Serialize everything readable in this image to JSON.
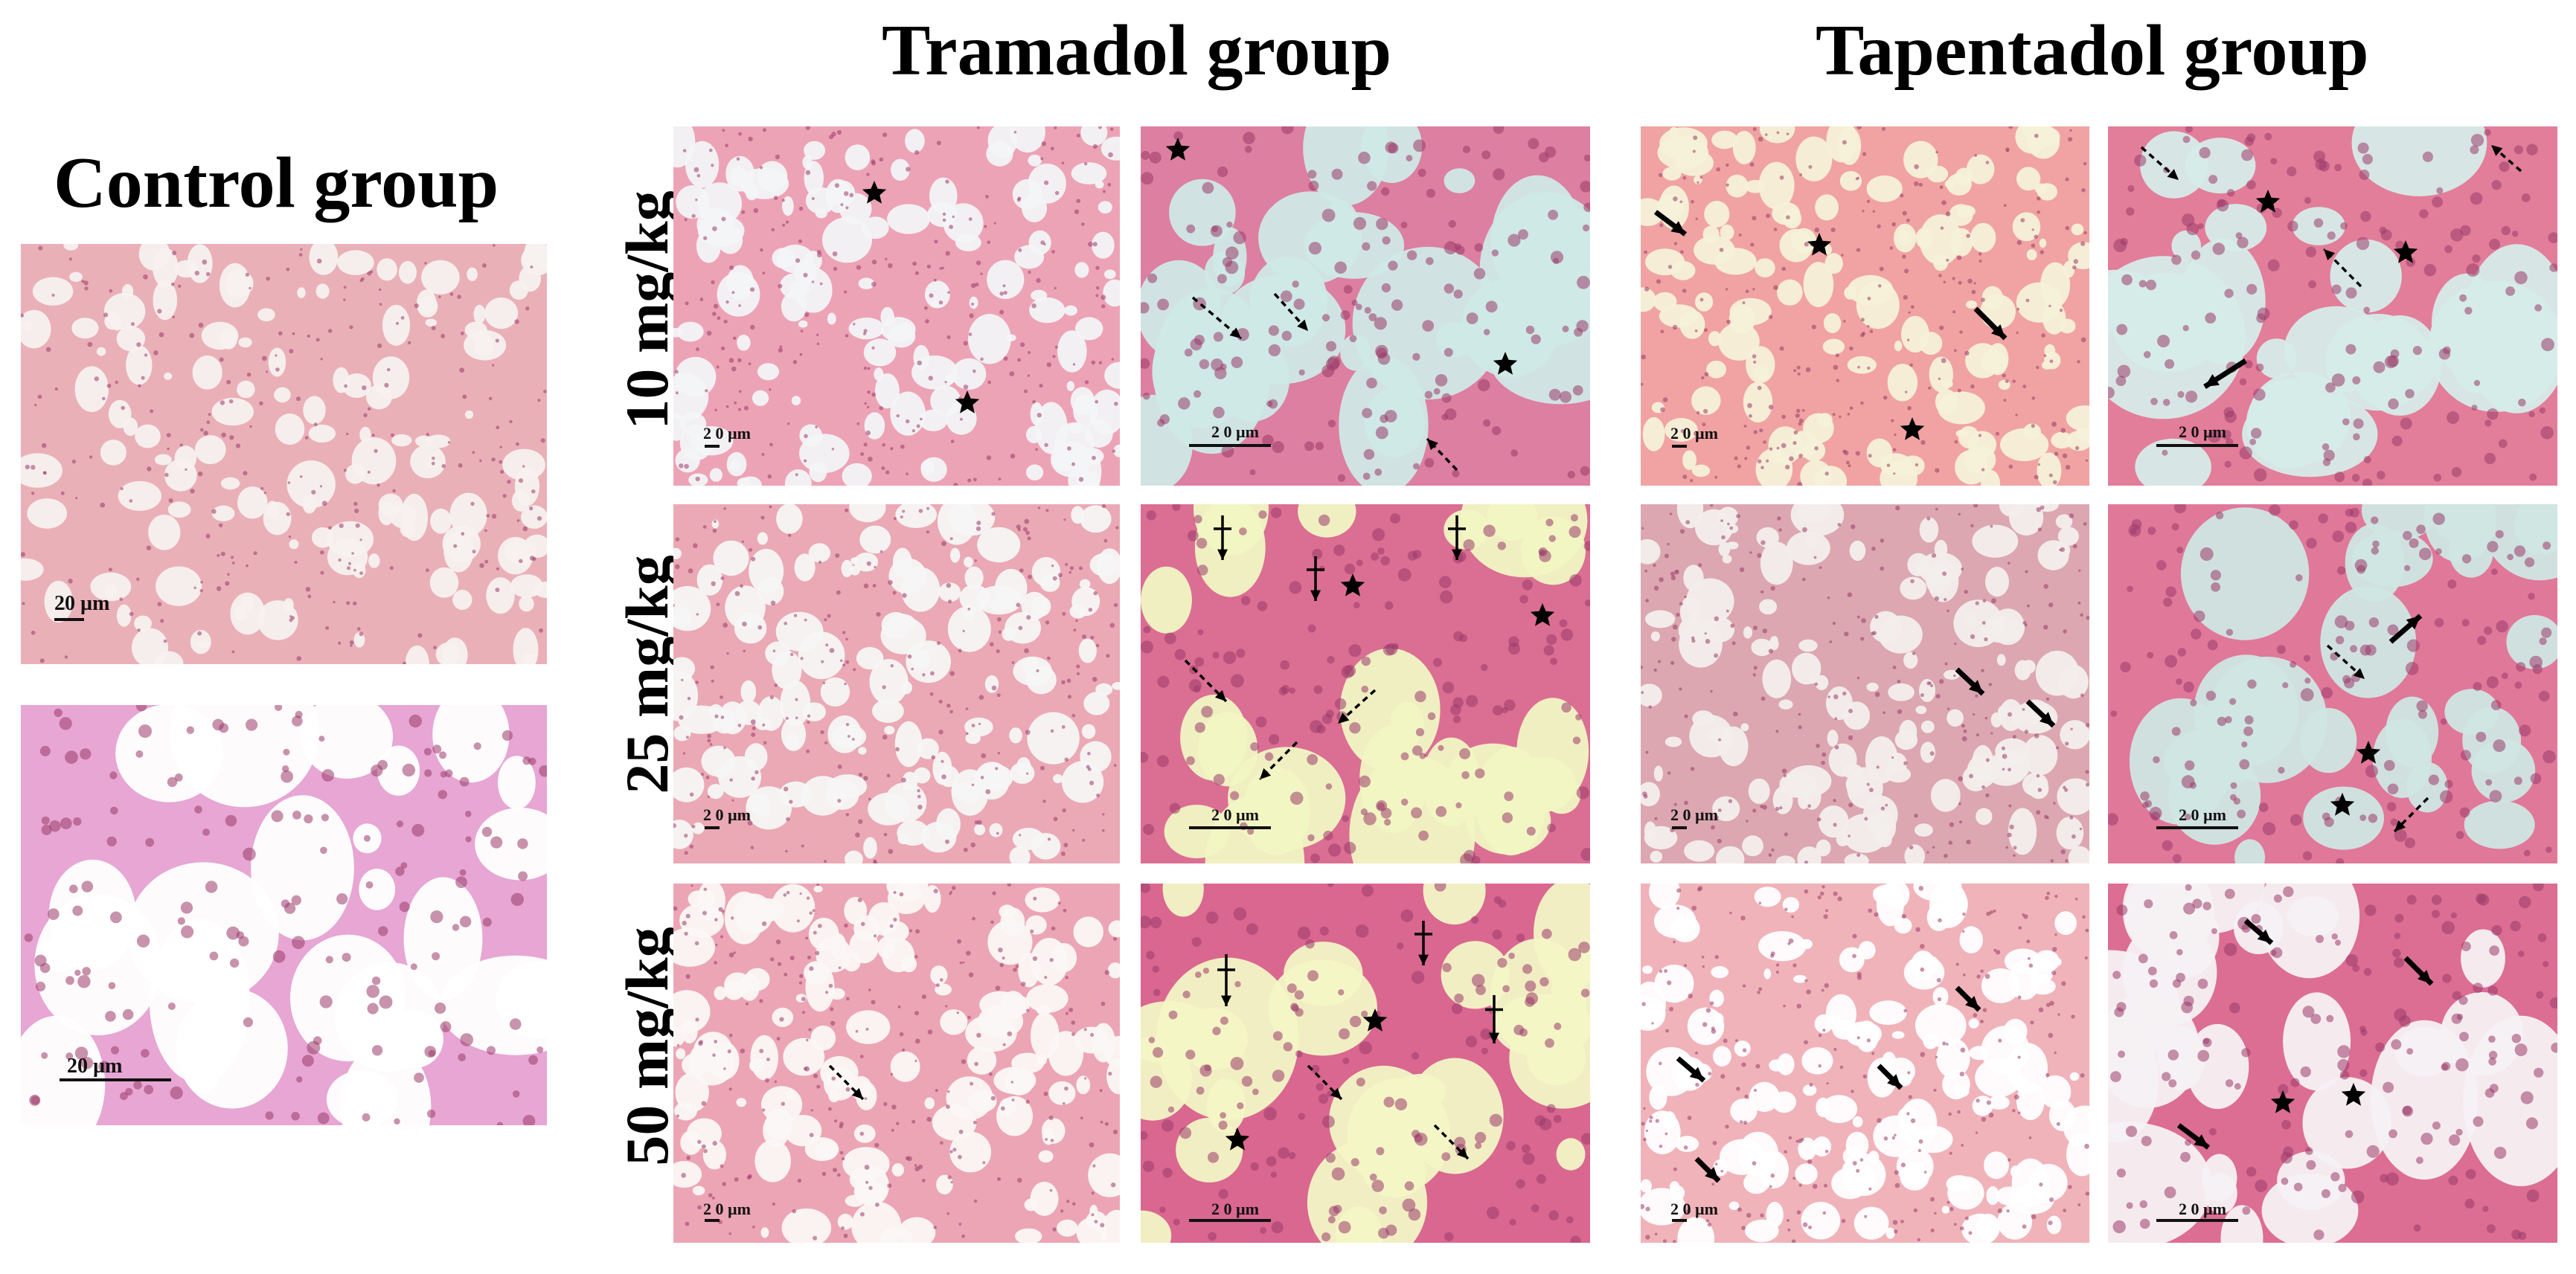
{
  "headings": {
    "control": "Control group",
    "tramadol": "Tramadol group",
    "tapentadol": "Tapentadol group"
  },
  "row_labels": [
    "10 mg/kg",
    "25 mg/kg",
    "50 mg/kg"
  ],
  "scale_bar_label": "20 µm",
  "scale_bar_label_spaced": "2 0 µm",
  "colors": {
    "tissue_pink": "#e9a3b3",
    "tissue_magenta": "#d9668f",
    "lumen_pale": "#f7f1ef",
    "lumen_cyan": "#cfe9e6",
    "lumen_yellow": "#f1f5c3",
    "marker": "#000000"
  },
  "marker_legend_symbols": [
    "star",
    "solid-arrow",
    "dashed-arrow",
    "crossed-arrow"
  ]
}
